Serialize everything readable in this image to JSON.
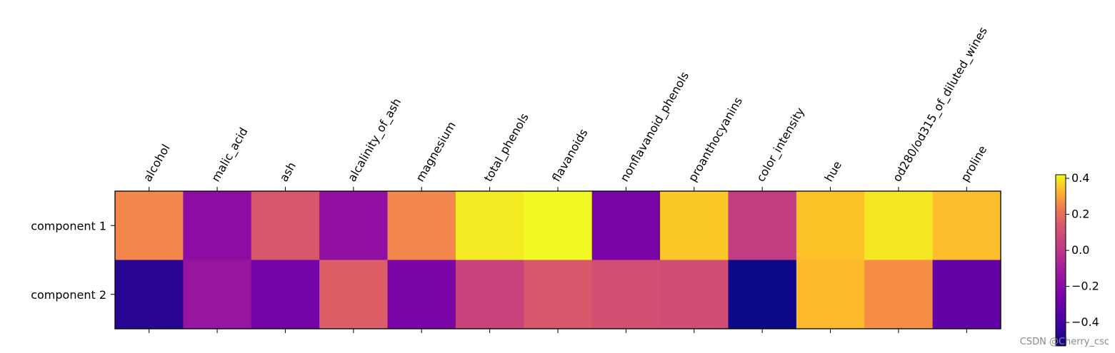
{
  "chart_data": {
    "type": "heatmap",
    "colormap": "plasma",
    "x_categories": [
      "alcohol",
      "malic_acid",
      "ash",
      "alcalinity_of_ash",
      "magnesium",
      "total_phenols",
      "flavanoids",
      "nonflavanoid_phenols",
      "proanthocyanins",
      "color_intensity",
      "hue",
      "od280/od315_of_diluted_wines",
      "proline"
    ],
    "y_categories": [
      "component 1",
      "component 2"
    ],
    "values": [
      [
        0.14,
        -0.25,
        0.0,
        -0.24,
        0.14,
        0.39,
        0.42,
        -0.3,
        0.31,
        -0.09,
        0.3,
        0.38,
        0.29
      ],
      [
        -0.48,
        -0.22,
        -0.32,
        0.02,
        -0.3,
        -0.07,
        0.0,
        -0.03,
        -0.04,
        -0.53,
        0.28,
        0.16,
        -0.36
      ]
    ],
    "colorbar": {
      "range": [
        -0.53,
        0.42
      ],
      "ticks": [
        0.4,
        0.2,
        0.0,
        -0.2,
        -0.4
      ],
      "tick_labels": [
        "0.4",
        "0.2",
        "0.0",
        "−0.2",
        "−0.4"
      ]
    },
    "x_tick_position": "top",
    "x_tick_rotation": 60,
    "grid": false,
    "title": "",
    "xlabel": "",
    "ylabel": ""
  },
  "watermark": "CSDN @Cherry_csc"
}
